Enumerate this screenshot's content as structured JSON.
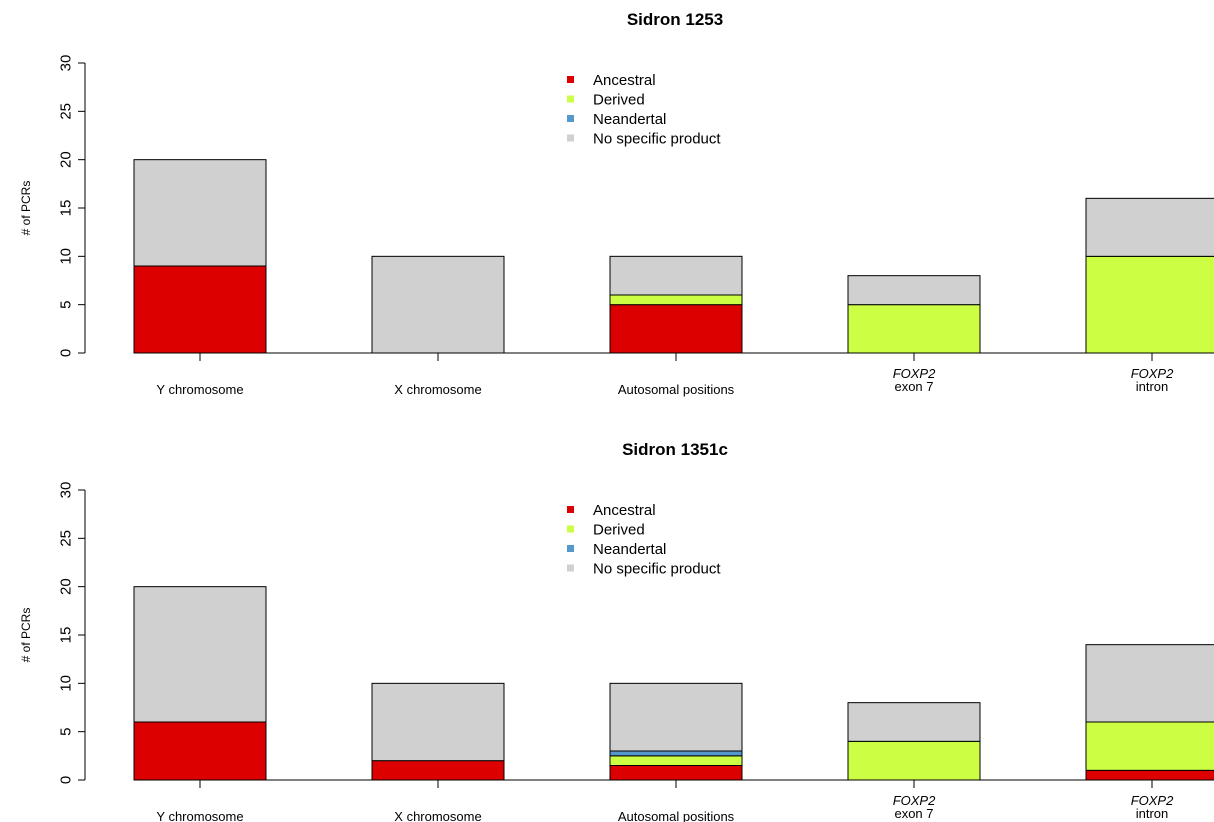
{
  "chart_data": [
    {
      "type": "bar",
      "stacked": true,
      "title": "Sidron 1253",
      "ylabel": "# of PCRs",
      "ylim": [
        0,
        30
      ],
      "yticks": [
        0,
        5,
        10,
        15,
        20,
        25,
        30
      ],
      "categories": [
        {
          "line1": "Y chromosome",
          "line2": "",
          "italic_line1": false
        },
        {
          "line1": "X chromosome",
          "line2": "",
          "italic_line1": false
        },
        {
          "line1": "Autosomal positions",
          "line2": "",
          "italic_line1": false
        },
        {
          "line1": "FOXP2",
          "line2": "exon 7",
          "italic_line1": true
        },
        {
          "line1": "FOXP2",
          "line2": "intron",
          "italic_line1": true
        }
      ],
      "series": [
        {
          "name": "Ancestral",
          "color": "#dd0000",
          "values": [
            9,
            0,
            5,
            0,
            0
          ]
        },
        {
          "name": "Derived",
          "color": "#ccff44",
          "values": [
            0,
            0,
            1,
            5,
            10
          ]
        },
        {
          "name": "Neandertal",
          "color": "#5599cc",
          "values": [
            0,
            0,
            0,
            0,
            0
          ]
        },
        {
          "name": "No specific product",
          "color": "#d0d0d0",
          "values": [
            11,
            10,
            4,
            3,
            6
          ]
        }
      ],
      "legend_position": "top-center"
    },
    {
      "type": "bar",
      "stacked": true,
      "title": "Sidron 1351c",
      "ylabel": "# of PCRs",
      "ylim": [
        0,
        30
      ],
      "yticks": [
        0,
        5,
        10,
        15,
        20,
        25,
        30
      ],
      "categories": [
        {
          "line1": "Y chromosome",
          "line2": "",
          "italic_line1": false
        },
        {
          "line1": "X chromosome",
          "line2": "",
          "italic_line1": false
        },
        {
          "line1": "Autosomal positions",
          "line2": "",
          "italic_line1": false
        },
        {
          "line1": "FOXP2",
          "line2": "exon 7",
          "italic_line1": true
        },
        {
          "line1": "FOXP2",
          "line2": "intron",
          "italic_line1": true
        }
      ],
      "series": [
        {
          "name": "Ancestral",
          "color": "#dd0000",
          "values": [
            6,
            2,
            1.5,
            0,
            1
          ]
        },
        {
          "name": "Derived",
          "color": "#ccff44",
          "values": [
            0,
            0,
            1,
            4,
            5
          ]
        },
        {
          "name": "Neandertal",
          "color": "#5599cc",
          "values": [
            0,
            0,
            0.5,
            0,
            0
          ]
        },
        {
          "name": "No specific product",
          "color": "#d0d0d0",
          "values": [
            14,
            8,
            7,
            4,
            8
          ]
        }
      ],
      "legend_position": "top-center"
    }
  ]
}
